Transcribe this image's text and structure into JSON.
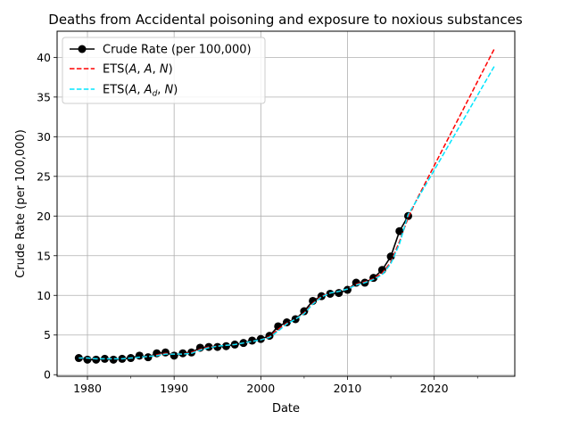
{
  "chart_data": {
    "type": "line",
    "title": "Deaths from Accidental poisoning and exposure to noxious substances",
    "xlabel": "Date",
    "ylabel": "Crude Rate (per 100,000)",
    "xlim": [
      1976.5,
      2029.3
    ],
    "ylim": [
      -0.2,
      43.3
    ],
    "x_ticks": [
      1980,
      1990,
      2000,
      2010,
      2020
    ],
    "y_ticks": [
      0,
      5,
      10,
      15,
      20,
      25,
      30,
      35,
      40
    ],
    "grid": true,
    "legend_position": "top-left",
    "series": [
      {
        "name": "Crude Rate (per 100,000)",
        "style": "black-line-dots",
        "color": "#000000",
        "x": [
          1979,
          1980,
          1981,
          1982,
          1983,
          1984,
          1985,
          1986,
          1987,
          1988,
          1989,
          1990,
          1991,
          1992,
          1993,
          1994,
          1995,
          1996,
          1997,
          1998,
          1999,
          2000,
          2001,
          2002,
          2003,
          2004,
          2005,
          2006,
          2007,
          2008,
          2009,
          2010,
          2011,
          2012,
          2013,
          2014,
          2015,
          2016,
          2017
        ],
        "y": [
          2.1,
          1.9,
          1.9,
          2.0,
          1.9,
          2.0,
          2.1,
          2.4,
          2.2,
          2.7,
          2.8,
          2.4,
          2.7,
          2.8,
          3.4,
          3.5,
          3.5,
          3.6,
          3.8,
          4.0,
          4.3,
          4.5,
          4.9,
          6.1,
          6.6,
          7.0,
          8.0,
          9.3,
          9.9,
          10.2,
          10.3,
          10.7,
          11.6,
          11.6,
          12.2,
          13.2,
          14.9,
          18.1,
          20.0
        ]
      },
      {
        "name": "ETS(A, A, N)",
        "style": "red-dashed",
        "color": "#ff0000",
        "x": [
          1979,
          1980,
          1981,
          1982,
          1983,
          1984,
          1985,
          1986,
          1987,
          1988,
          1989,
          1990,
          1991,
          1992,
          1993,
          1994,
          1995,
          1996,
          1997,
          1998,
          1999,
          2000,
          2001,
          2002,
          2003,
          2004,
          2005,
          2006,
          2007,
          2008,
          2009,
          2010,
          2011,
          2012,
          2013,
          2014,
          2015,
          2016,
          2017,
          2018,
          2027
        ],
        "y": [
          2.1,
          2.1,
          2.0,
          2.0,
          2.0,
          2.0,
          2.1,
          2.2,
          2.3,
          2.5,
          2.7,
          2.6,
          2.6,
          2.8,
          3.2,
          3.5,
          3.6,
          3.7,
          3.8,
          4.0,
          4.2,
          4.4,
          4.8,
          5.7,
          6.5,
          7.0,
          7.8,
          9.0,
          9.9,
          10.3,
          10.5,
          10.8,
          11.4,
          11.7,
          12.1,
          12.8,
          14.2,
          16.8,
          19.8,
          22.1,
          41.2
        ]
      },
      {
        "name": "ETS(A, A_d, N)",
        "style": "cyan-dashed",
        "color": "#00e5ff",
        "x": [
          1979,
          1980,
          1981,
          1982,
          1983,
          1984,
          1985,
          1986,
          1987,
          1988,
          1989,
          1990,
          1991,
          1992,
          1993,
          1994,
          1995,
          1996,
          1997,
          1998,
          1999,
          2000,
          2001,
          2002,
          2003,
          2004,
          2005,
          2006,
          2007,
          2008,
          2009,
          2010,
          2011,
          2012,
          2013,
          2014,
          2015,
          2016,
          2017,
          2018,
          2027
        ],
        "y": [
          2.1,
          2.1,
          2.0,
          2.0,
          2.0,
          2.0,
          2.1,
          2.2,
          2.3,
          2.4,
          2.6,
          2.6,
          2.6,
          2.7,
          3.1,
          3.4,
          3.6,
          3.7,
          3.8,
          4.0,
          4.2,
          4.4,
          4.7,
          5.5,
          6.4,
          7.0,
          7.7,
          8.9,
          9.8,
          10.3,
          10.5,
          10.8,
          11.3,
          11.6,
          12.0,
          12.6,
          14.0,
          16.5,
          20.2,
          22.0,
          39.0
        ]
      }
    ],
    "legend": {
      "entries": [
        {
          "label": "Crude Rate (per 100,000)"
        },
        {
          "label_parts": [
            "ETS(",
            "A",
            ", ",
            "A",
            ", ",
            "N",
            ")"
          ]
        },
        {
          "label_parts": [
            "ETS(",
            "A",
            ", ",
            "A",
            "d",
            ", ",
            "N",
            ")"
          ]
        }
      ]
    }
  }
}
